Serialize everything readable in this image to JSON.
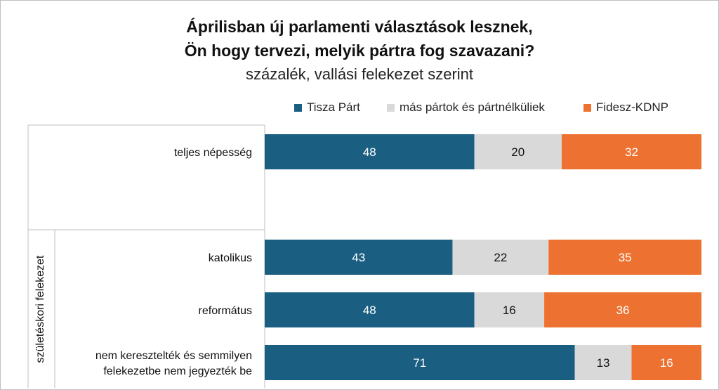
{
  "chart_data": {
    "type": "bar",
    "orientation": "horizontal-stacked-100",
    "title": "Áprilisban új parlamenti választások lesznek,",
    "title_line2": "Ön hogy tervezi, melyik pártra fog szavazani?",
    "subtitle": "százalék, vallási felekezet szerint",
    "group_label": "születéskori felekezet",
    "categories": [
      [
        "teljes népesség"
      ],
      [],
      [
        "katolikus"
      ],
      [
        "református"
      ],
      [
        "nem keresztelték és semmilyen",
        "felekezetbe nem jegyezték be"
      ]
    ],
    "series": [
      {
        "name": "Tisza Párt",
        "color": "#1a5e82",
        "label_color": "#ffffff",
        "values": [
          48,
          null,
          43,
          48,
          71
        ]
      },
      {
        "name": "más pártok és pártnélküliek",
        "color": "#d9d9d9",
        "label_color": "#111111",
        "values": [
          20,
          null,
          22,
          16,
          13
        ]
      },
      {
        "name": "Fidesz-KDNP",
        "color": "#ed7232",
        "label_color": "#ffffff",
        "values": [
          32,
          null,
          35,
          36,
          16
        ]
      }
    ],
    "xlim": [
      0,
      100
    ],
    "legend_position": "top-right"
  }
}
